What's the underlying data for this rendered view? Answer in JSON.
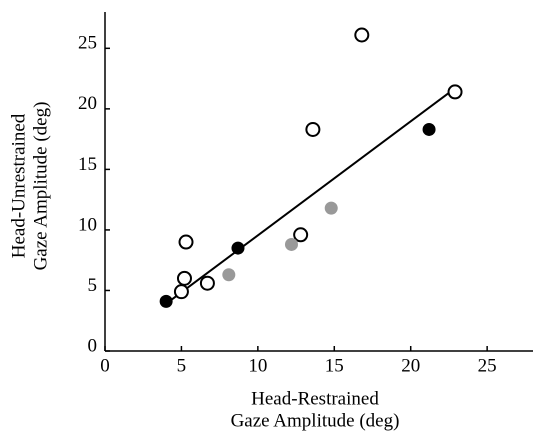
{
  "chart_data": {
    "type": "scatter",
    "x_label": [
      "Head-Restrained",
      "Gaze Amplitude (deg)"
    ],
    "y_label": [
      "Head-Unrestrained",
      "Gaze Amplitude (deg)"
    ],
    "xlim": [
      0,
      28
    ],
    "ylim": [
      0,
      28
    ],
    "xticks": [
      0,
      5,
      10,
      15,
      20,
      25
    ],
    "yticks": [
      0,
      5,
      10,
      15,
      20,
      25
    ],
    "series": [
      {
        "color": "#000000",
        "filled": false,
        "x": [
          5.0,
          5.2,
          5.3,
          6.7,
          12.8,
          13.6,
          16.8,
          22.9
        ],
        "values": [
          4.9,
          6.0,
          9.0,
          5.6,
          9.6,
          18.3,
          26.1,
          21.4
        ]
      },
      {
        "color": "#000000",
        "filled": true,
        "x": [
          4.0,
          8.7,
          21.2
        ],
        "values": [
          4.1,
          8.5,
          18.3
        ]
      },
      {
        "color": "#999999",
        "filled": true,
        "x": [
          8.1,
          12.2,
          14.8
        ],
        "values": [
          6.3,
          8.8,
          11.8
        ]
      }
    ],
    "fit_line": {
      "color": "#000000",
      "x": [
        4.1,
        22.9
      ],
      "values": [
        4.0,
        21.7
      ]
    }
  }
}
